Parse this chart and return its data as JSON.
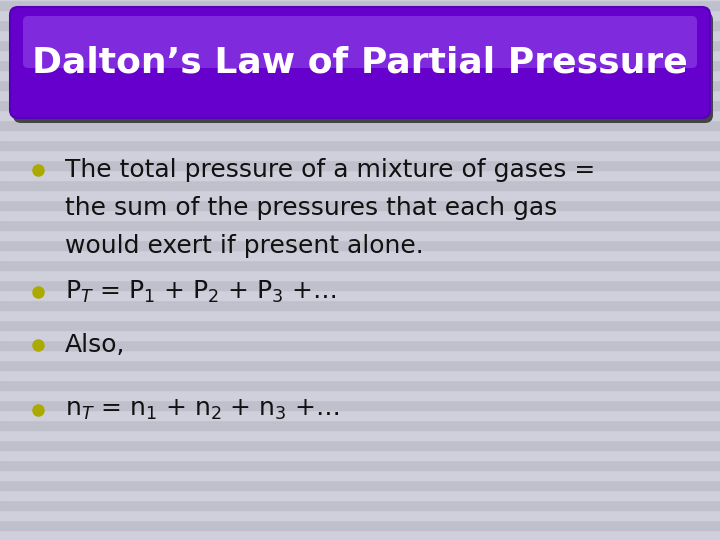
{
  "title": "Dalton’s Law of Partial Pressure",
  "title_color": "#ffffff",
  "title_bg_color": "#6600cc",
  "title_bg_shadow_color": "#444444",
  "background_color": "#c8c8d4",
  "stripe_color_light": "#d0d0dc",
  "stripe_color_dark": "#c0c0cc",
  "bullet_color": "#aaaa00",
  "text_color": "#111111",
  "bullet1_line1": "The total pressure of a mixture of gases =",
  "bullet1_line2": "the sum of the pressures that each gas",
  "bullet1_line3": "would exert if present alone.",
  "bullet2": "P$_{T}$ = P$_{1}$ + P$_{2}$ + P$_{3}$ +…",
  "bullet3": "Also,",
  "bullet4": "n$_{T}$ = n$_{1}$ + n$_{2}$ + n$_{3}$ +…",
  "font_size_title": 26,
  "font_size_body": 18
}
